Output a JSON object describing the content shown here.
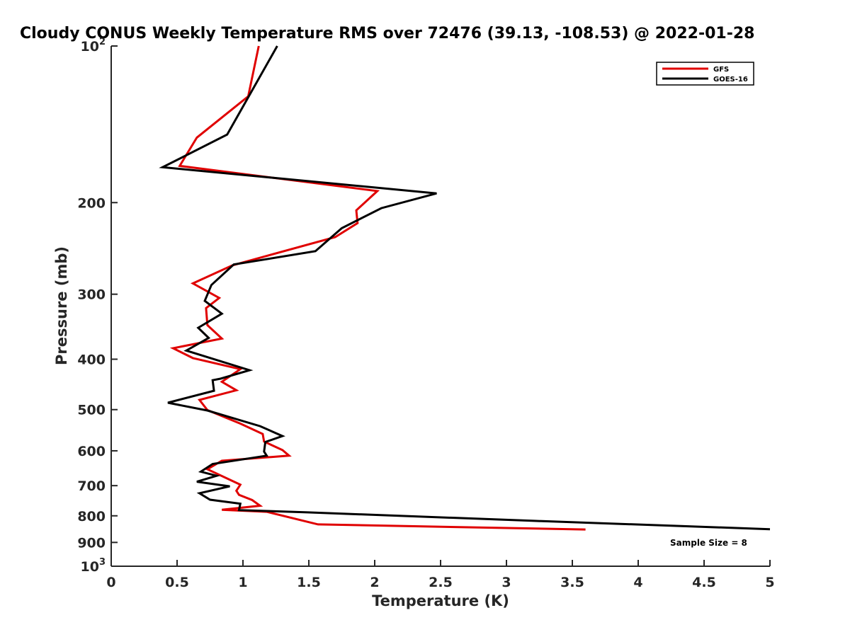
{
  "chart_data": {
    "type": "line",
    "title": "Cloudy CONUS Weekly Temperature RMS over 72476 (39.13, -108.53) @ 2022-01-28",
    "xlabel": "Temperature (K)",
    "ylabel": "Pressure (mb)",
    "xlim": [
      0,
      5
    ],
    "ylim": [
      100,
      1000
    ],
    "yscale": "log",
    "yreversed": true,
    "xticks": [
      "0",
      "0.5",
      "1",
      "1.5",
      "2",
      "2.5",
      "3",
      "3.5",
      "4",
      "4.5",
      "5"
    ],
    "yticks": [
      {
        "value": 100,
        "base": "10",
        "exp": "2"
      },
      {
        "value": 200,
        "label": "200"
      },
      {
        "value": 300,
        "label": "300"
      },
      {
        "value": 400,
        "label": "400"
      },
      {
        "value": 500,
        "label": "500"
      },
      {
        "value": 600,
        "label": "600"
      },
      {
        "value": 700,
        "label": "700"
      },
      {
        "value": 800,
        "label": "800"
      },
      {
        "value": 900,
        "label": "900"
      },
      {
        "value": 1000,
        "base": "10",
        "exp": "3"
      }
    ],
    "legend_position": "top-right",
    "grid": false,
    "annotation": "Sample Size = 8",
    "series": [
      {
        "name": "GFS",
        "color": "#e00000",
        "points": [
          [
            1.12,
            100
          ],
          [
            1.04,
            125
          ],
          [
            0.65,
            150
          ],
          [
            0.52,
            170
          ],
          [
            2.02,
            190
          ],
          [
            1.86,
            207
          ],
          [
            1.87,
            219
          ],
          [
            1.7,
            233
          ],
          [
            0.92,
            264
          ],
          [
            0.62,
            286
          ],
          [
            0.82,
            305
          ],
          [
            0.72,
            319
          ],
          [
            0.73,
            344
          ],
          [
            0.84,
            365
          ],
          [
            0.47,
            381
          ],
          [
            0.62,
            398
          ],
          [
            0.98,
            418
          ],
          [
            0.84,
            442
          ],
          [
            0.95,
            459
          ],
          [
            0.67,
            479
          ],
          [
            0.73,
            501
          ],
          [
            0.98,
            532
          ],
          [
            1.15,
            557
          ],
          [
            1.16,
            576
          ],
          [
            1.3,
            598
          ],
          [
            1.35,
            613
          ],
          [
            0.84,
            627
          ],
          [
            0.73,
            651
          ],
          [
            0.98,
            697
          ],
          [
            0.95,
            716
          ],
          [
            0.97,
            729
          ],
          [
            1.07,
            746
          ],
          [
            1.13,
            765
          ],
          [
            0.84,
            779
          ],
          [
            1.18,
            786
          ],
          [
            1.57,
            831
          ],
          [
            3.6,
            850
          ]
        ]
      },
      {
        "name": "GOES-16",
        "color": "#000000",
        "points": [
          [
            1.26,
            100
          ],
          [
            0.88,
            148
          ],
          [
            0.39,
            171
          ],
          [
            2.47,
            192
          ],
          [
            2.05,
            205
          ],
          [
            1.75,
            224
          ],
          [
            1.55,
            248
          ],
          [
            0.93,
            263
          ],
          [
            0.76,
            288
          ],
          [
            0.71,
            309
          ],
          [
            0.84,
            327
          ],
          [
            0.66,
            348
          ],
          [
            0.74,
            364
          ],
          [
            0.57,
            385
          ],
          [
            1.05,
            420
          ],
          [
            0.83,
            436
          ],
          [
            0.77,
            439
          ],
          [
            0.78,
            460
          ],
          [
            0.43,
            485
          ],
          [
            0.73,
            502
          ],
          [
            1.13,
            538
          ],
          [
            1.3,
            562
          ],
          [
            1.17,
            577
          ],
          [
            1.16,
            602
          ],
          [
            1.18,
            613
          ],
          [
            0.77,
            636
          ],
          [
            0.68,
            658
          ],
          [
            0.8,
            670
          ],
          [
            0.65,
            688
          ],
          [
            0.9,
            702
          ],
          [
            0.67,
            724
          ],
          [
            0.75,
            745
          ],
          [
            0.98,
            758
          ],
          [
            0.97,
            780
          ],
          [
            1.49,
            788
          ],
          [
            3.21,
            818
          ],
          [
            5.0,
            849
          ]
        ]
      }
    ]
  }
}
